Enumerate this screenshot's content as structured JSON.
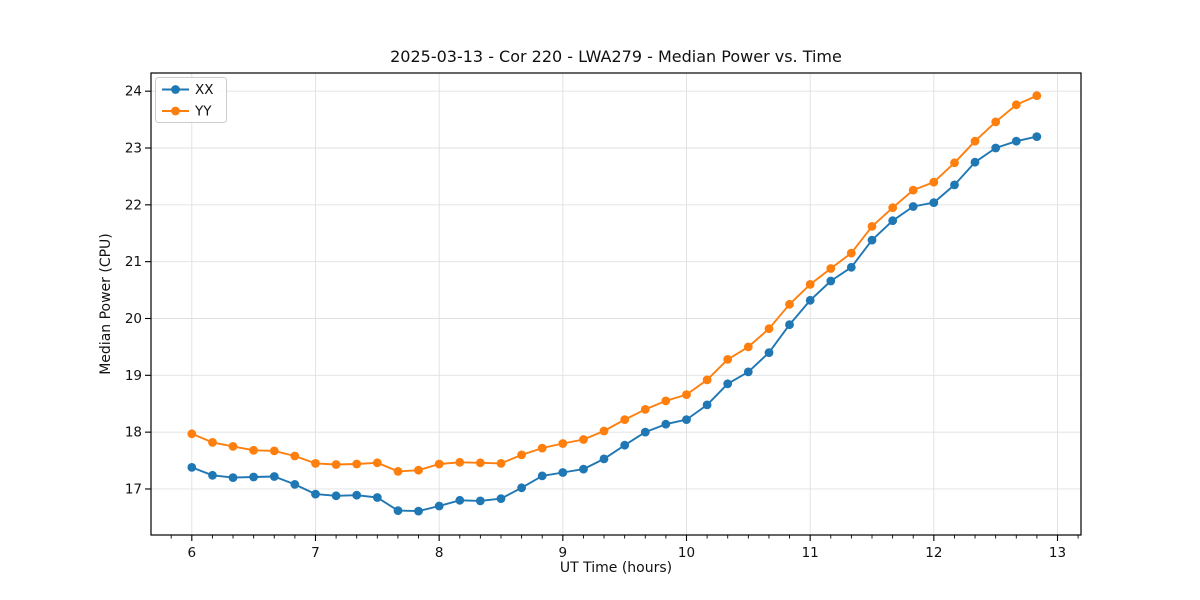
{
  "chart_data": {
    "type": "line",
    "title": "2025-03-13 - Cor 220 - LWA279 - Median Power vs. Time",
    "xlabel": "UT Time (hours)",
    "ylabel": "Median Power (CPU)",
    "xlim": [
      5.67,
      13.19
    ],
    "ylim": [
      16.19,
      24.32
    ],
    "xticks": [
      6,
      7,
      8,
      9,
      10,
      11,
      12,
      13
    ],
    "yticks": [
      17,
      18,
      19,
      20,
      21,
      22,
      23,
      24
    ],
    "x_minor_per_major": 6,
    "grid": true,
    "legend_position": "upper-left",
    "x": [
      6,
      6.167,
      6.333,
      6.5,
      6.667,
      6.833,
      7,
      7.167,
      7.333,
      7.5,
      7.667,
      7.833,
      8,
      8.167,
      8.333,
      8.5,
      8.667,
      8.833,
      9,
      9.167,
      9.333,
      9.5,
      9.667,
      9.833,
      10,
      10.167,
      10.333,
      10.5,
      10.667,
      10.833,
      11,
      11.167,
      11.333,
      11.5,
      11.667,
      11.833,
      12,
      12.167,
      12.333,
      12.5,
      12.667,
      12.833
    ],
    "series": [
      {
        "name": "XX",
        "color": "#1f77b4",
        "values": [
          17.38,
          17.24,
          17.2,
          17.21,
          17.22,
          17.08,
          16.91,
          16.88,
          16.89,
          16.85,
          16.62,
          16.61,
          16.7,
          16.8,
          16.79,
          16.83,
          17.02,
          17.23,
          17.29,
          17.35,
          17.53,
          17.77,
          18.0,
          18.14,
          18.22,
          18.48,
          18.85,
          19.06,
          19.4,
          19.89,
          20.32,
          20.66,
          20.9,
          21.38,
          21.72,
          21.97,
          22.04,
          22.35,
          22.75,
          23.0,
          23.12,
          23.2
        ]
      },
      {
        "name": "YY",
        "color": "#ff7f0e",
        "values": [
          17.97,
          17.82,
          17.75,
          17.68,
          17.67,
          17.58,
          17.45,
          17.43,
          17.44,
          17.46,
          17.31,
          17.33,
          17.44,
          17.47,
          17.46,
          17.45,
          17.6,
          17.72,
          17.8,
          17.87,
          18.02,
          18.22,
          18.4,
          18.55,
          18.66,
          18.92,
          19.28,
          19.5,
          19.82,
          20.25,
          20.6,
          20.88,
          21.15,
          21.62,
          21.95,
          22.26,
          22.4,
          22.74,
          23.12,
          23.46,
          23.76,
          23.92
        ]
      }
    ],
    "style": {
      "grid_color": "#e0e0e0",
      "spine_color": "#000000",
      "tick_color": "#000000",
      "background": "#ffffff",
      "marker_radius": 4.4,
      "line_width": 1.9
    }
  }
}
